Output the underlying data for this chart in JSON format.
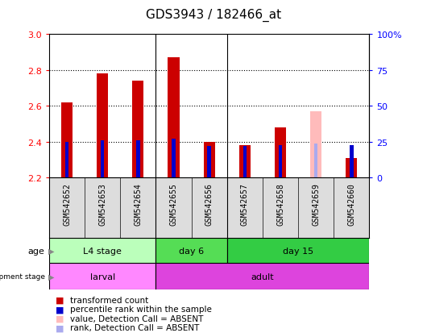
{
  "title": "GDS3943 / 182466_at",
  "samples": [
    "GSM542652",
    "GSM542653",
    "GSM542654",
    "GSM542655",
    "GSM542656",
    "GSM542657",
    "GSM542658",
    "GSM542659",
    "GSM542660"
  ],
  "transformed_count": [
    2.62,
    2.78,
    2.74,
    2.87,
    2.4,
    2.38,
    2.48,
    null,
    2.31
  ],
  "absent_value": [
    null,
    null,
    null,
    null,
    null,
    null,
    null,
    2.57,
    null
  ],
  "percentile_rank": [
    25,
    26,
    26,
    27,
    22,
    22,
    23,
    null,
    23
  ],
  "absent_rank": [
    null,
    null,
    null,
    null,
    null,
    null,
    null,
    24,
    null
  ],
  "ylim_left": [
    2.2,
    3.0
  ],
  "ylim_right": [
    0,
    100
  ],
  "yticks_left": [
    2.2,
    2.4,
    2.6,
    2.8,
    3.0
  ],
  "yticks_right": [
    0,
    25,
    50,
    75,
    100
  ],
  "ytick_labels_right": [
    "0",
    "25",
    "50",
    "75",
    "100%"
  ],
  "bar_bottom": 2.2,
  "age_groups": [
    {
      "label": "L4 stage",
      "start": 0,
      "end": 3,
      "color": "#bbffbb"
    },
    {
      "label": "day 6",
      "start": 3,
      "end": 5,
      "color": "#55dd55"
    },
    {
      "label": "day 15",
      "start": 5,
      "end": 9,
      "color": "#33cc44"
    }
  ],
  "dev_groups": [
    {
      "label": "larval",
      "start": 0,
      "end": 3,
      "color": "#ff88ff"
    },
    {
      "label": "adult",
      "start": 3,
      "end": 9,
      "color": "#dd44dd"
    }
  ],
  "bar_color_present": "#cc0000",
  "bar_color_absent": "#ffbbbb",
  "rank_color_present": "#0000cc",
  "rank_color_absent": "#aaaaee",
  "grid_dotted_at": [
    2.4,
    2.6,
    2.8
  ],
  "vline_at": [
    2.5,
    4.5
  ],
  "title_fontsize": 11,
  "tick_fontsize": 8,
  "sample_fontsize": 7,
  "annot_fontsize": 8,
  "legend_fontsize": 8
}
